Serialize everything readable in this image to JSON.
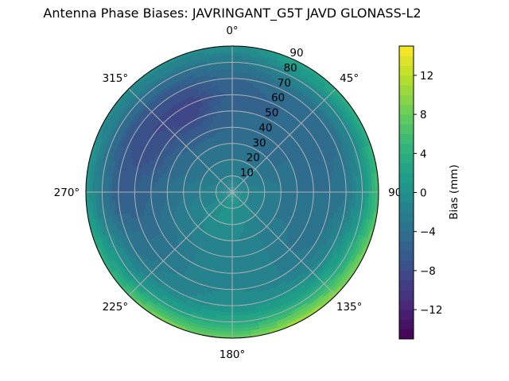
{
  "chart_data": {
    "type": "heatmap",
    "projection": "polar",
    "title": "Antenna Phase Biases: JAVRINGANT_G5T  JAVD GLONASS-L2",
    "theta_direction": "clockwise",
    "theta_zero": "north",
    "theta_tick_labels": [
      "0°",
      "45°",
      "90°",
      "135°",
      "180°",
      "225°",
      "270°",
      "315°"
    ],
    "theta_ticks": [
      0,
      45,
      90,
      135,
      180,
      225,
      270,
      315
    ],
    "r_ticks": [
      10,
      20,
      30,
      40,
      50,
      60,
      70,
      80,
      90
    ],
    "r_tick_labels": [
      "10",
      "20",
      "30",
      "40",
      "50",
      "60",
      "70",
      "80",
      "90"
    ],
    "rlim": [
      0,
      90
    ],
    "grid": true,
    "colormap": "viridis",
    "colorbar": {
      "label": "Bias (mm)",
      "range": [
        -15,
        15
      ],
      "level_step": 1,
      "ticks": [
        -12,
        -8,
        -4,
        0,
        4,
        8,
        12
      ],
      "tick_labels": [
        "−12",
        "−8",
        "−4",
        "0",
        "4",
        "8",
        "12"
      ],
      "position": "right"
    },
    "azimuths": [
      0,
      30,
      60,
      90,
      120,
      150,
      180,
      210,
      240,
      270,
      300,
      330
    ],
    "zeniths": [
      0,
      10,
      20,
      30,
      40,
      50,
      60,
      70,
      80,
      90
    ],
    "values": [
      [
        -1,
        -2,
        -3,
        -4,
        -5,
        -5,
        -6,
        -5,
        -3,
        0
      ],
      [
        -1,
        -2,
        -3,
        -4,
        -5,
        -5,
        -5,
        -4,
        -1,
        3
      ],
      [
        -1,
        -2,
        -3,
        -4,
        -4,
        -5,
        -5,
        -4,
        -1,
        4
      ],
      [
        -1,
        -1,
        -2,
        -3,
        -4,
        -4,
        -4,
        -3,
        0,
        6
      ],
      [
        0,
        -1,
        -2,
        -3,
        -3,
        -4,
        -3,
        -1,
        3,
        9
      ],
      [
        0,
        0,
        -1,
        -2,
        -2,
        -2,
        -2,
        0,
        4,
        11
      ],
      [
        0,
        0,
        0,
        -1,
        -1,
        -1,
        -1,
        0,
        3,
        8
      ],
      [
        0,
        0,
        0,
        -1,
        -2,
        -2,
        -2,
        -1,
        2,
        9
      ],
      [
        0,
        -1,
        -1,
        -2,
        -3,
        -4,
        -4,
        -3,
        0,
        4
      ],
      [
        -1,
        -1,
        -2,
        -3,
        -4,
        -5,
        -6,
        -6,
        -3,
        1
      ],
      [
        -1,
        -2,
        -3,
        -4,
        -5,
        -7,
        -8,
        -7,
        -4,
        0
      ],
      [
        -1,
        -2,
        -3,
        -4,
        -6,
        -8,
        -9,
        -7,
        -4,
        0
      ]
    ]
  }
}
